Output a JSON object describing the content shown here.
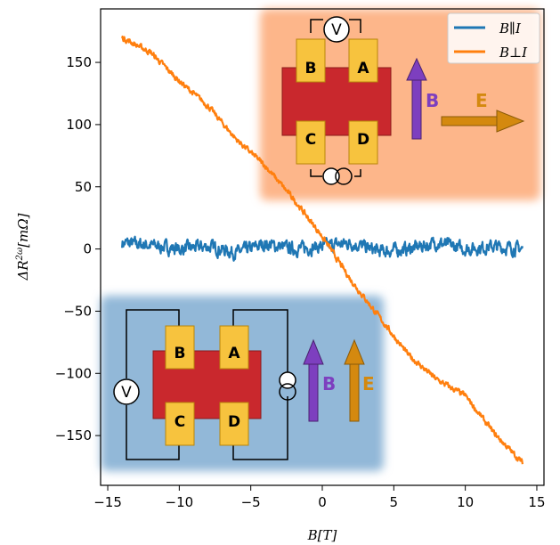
{
  "chart_data": {
    "type": "line",
    "xlabel": "B[T]",
    "ylabel": "ΔR^2ω[mΩ]",
    "xlim": [
      -15.5,
      15.5
    ],
    "ylim": [
      -190,
      193
    ],
    "x_ticks": [
      -15,
      -10,
      -5,
      0,
      5,
      10,
      15
    ],
    "x_tick_labels": [
      "−15",
      "−10",
      "−5",
      "0",
      "5",
      "10",
      "15"
    ],
    "y_ticks": [
      -150,
      -100,
      -50,
      0,
      50,
      100,
      150
    ],
    "y_tick_labels": [
      "−150",
      "−100",
      "−50",
      "0",
      "50",
      "100",
      "150"
    ],
    "grid": false,
    "legend_position": "top-right",
    "series": [
      {
        "name": "B∥I",
        "color": "#1f77b4",
        "x": [
          -14,
          -12,
          -10,
          -8,
          -6,
          -4,
          -2,
          0,
          2,
          4,
          6,
          8,
          10,
          12,
          14
        ],
        "values": [
          5,
          3,
          0,
          2,
          -3,
          4,
          0,
          2,
          5,
          -2,
          0,
          5,
          0,
          2,
          0
        ]
      },
      {
        "name": "B⊥I",
        "color": "#ff7f0e",
        "x": [
          -14,
          -12,
          -10,
          -8,
          -6,
          -4,
          -2,
          0,
          2,
          4,
          6,
          8,
          10,
          12,
          14
        ],
        "values": [
          170,
          158,
          135,
          115,
          88,
          67,
          40,
          10,
          -25,
          -55,
          -85,
          -105,
          -118,
          -148,
          -172
        ]
      }
    ],
    "insets": [
      {
        "panel": "top",
        "panel_color": "#fdb68a",
        "pads": [
          "B",
          "A",
          "C",
          "D"
        ],
        "meter": "V",
        "vectors": [
          "B",
          "E"
        ],
        "vector_colors": {
          "B": "#7d3fbf",
          "E": "#d4890f"
        }
      },
      {
        "panel": "bottom",
        "panel_color": "#92b8d8",
        "pads": [
          "B",
          "A",
          "C",
          "D"
        ],
        "meter": "V",
        "vectors": [
          "B",
          "E"
        ],
        "vector_colors": {
          "B": "#7d3fbf",
          "E": "#d4890f"
        }
      }
    ]
  }
}
